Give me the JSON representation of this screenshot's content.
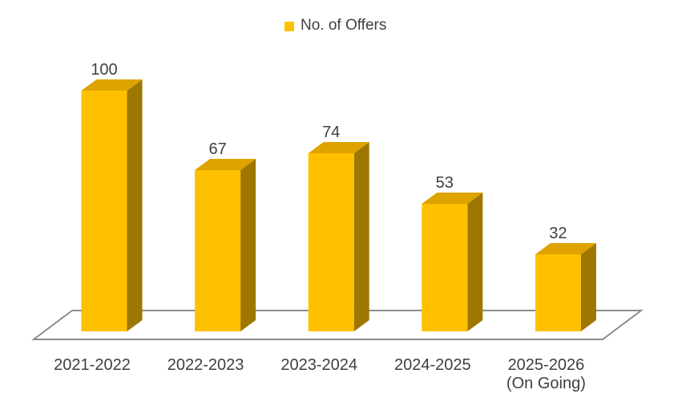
{
  "chart_data": {
    "type": "bar",
    "subtype": "3d-column",
    "title": "",
    "xlabel": "",
    "ylabel": "",
    "categories": [
      "2021-2022",
      "2022-2023",
      "2023-2024",
      "2024-2025",
      "2025-2026\n(On Going)"
    ],
    "series": [
      {
        "name": "No. of Offers",
        "values": [
          100,
          67,
          74,
          53,
          32
        ]
      }
    ],
    "ylim": [
      0,
      100
    ],
    "grid": false,
    "legend_position": "top-center",
    "background": "#FFFFFF",
    "colors": {
      "bar_front": "#FFC000",
      "bar_top": "#DFA300",
      "bar_side": "#9E7700",
      "floor_stroke": "#8C8C8C",
      "label_text": "#3F3F3F"
    }
  }
}
